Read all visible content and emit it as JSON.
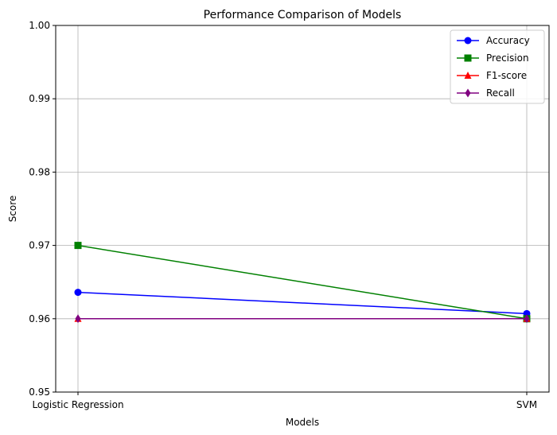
{
  "chart_data": {
    "type": "line",
    "title": "Performance Comparison of Models",
    "xlabel": "Models",
    "ylabel": "Score",
    "categories": [
      "Logistic Regression",
      "SVM"
    ],
    "ylim": [
      0.95,
      1.0
    ],
    "yticks": [
      "0.95",
      "0.96",
      "0.97",
      "0.98",
      "0.99",
      "1.00"
    ],
    "grid": true,
    "legend_position": "top-right",
    "series": [
      {
        "name": "Accuracy",
        "values": [
          0.9636,
          0.9607
        ],
        "color": "#0000ff",
        "marker": "circle"
      },
      {
        "name": "Precision",
        "values": [
          0.97,
          0.96
        ],
        "color": "#008000",
        "marker": "square"
      },
      {
        "name": "F1-score",
        "values": [
          0.96,
          0.96
        ],
        "color": "#ff0000",
        "marker": "triangle"
      },
      {
        "name": "Recall",
        "values": [
          0.96,
          0.96
        ],
        "color": "#800080",
        "marker": "diamond"
      }
    ]
  }
}
